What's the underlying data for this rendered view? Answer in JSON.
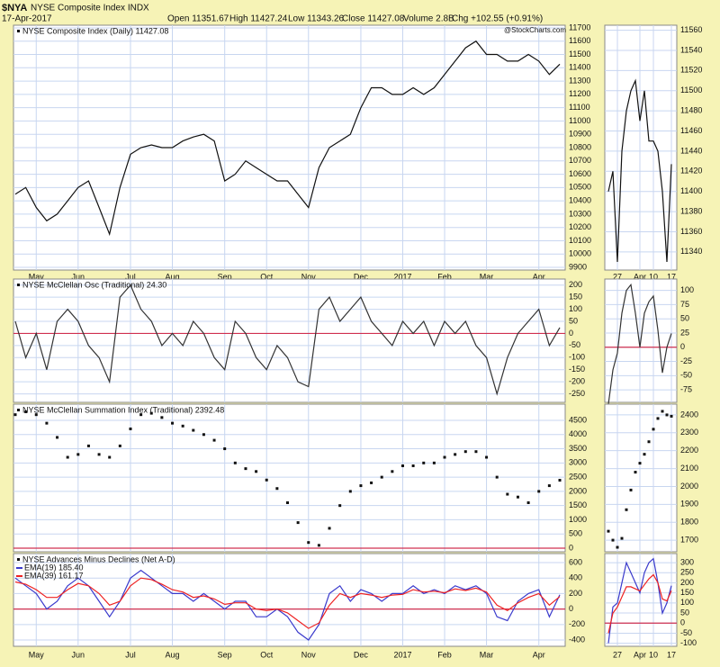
{
  "header": {
    "symbol": "$NYA",
    "name": "NYSE Composite Index INDX",
    "date": "17-Apr-2017",
    "quote": [
      "Open 11351.67",
      "High 11427.24",
      "Low 11343.26",
      "Close 11427.08",
      "Volume 2.8B",
      "Chg +102.55 (+0.91%)"
    ],
    "credit": "@StockCharts.com"
  },
  "chart_data": [
    {
      "type": "line",
      "title": "NYSE Composite Index (Daily) 11427.08",
      "color": "#111111",
      "categories": [
        null,
        null,
        "May",
        null,
        null,
        null,
        "Jun",
        null,
        null,
        null,
        null,
        "Jul",
        null,
        null,
        null,
        "Aug",
        null,
        null,
        null,
        null,
        "Sep",
        null,
        null,
        null,
        "Oct",
        null,
        null,
        null,
        "Nov",
        null,
        null,
        null,
        null,
        "Dec",
        null,
        null,
        null,
        "2017",
        null,
        null,
        null,
        "Feb",
        null,
        null,
        null,
        "Mar",
        null,
        null,
        null,
        null,
        "Apr",
        null,
        null
      ],
      "values": [
        10450,
        10500,
        10350,
        10250,
        10300,
        10400,
        10500,
        10550,
        10350,
        10150,
        10500,
        10750,
        10800,
        10820,
        10800,
        10800,
        10850,
        10880,
        10900,
        10850,
        10550,
        10600,
        10700,
        10650,
        10600,
        10550,
        10550,
        10450,
        10350,
        10650,
        10800,
        10850,
        10900,
        11100,
        11250,
        11250,
        11200,
        11200,
        11250,
        11200,
        11250,
        11350,
        11450,
        11550,
        11600,
        11500,
        11500,
        11450,
        11450,
        11500,
        11450,
        11350,
        11427.08
      ],
      "ylim": [
        9880,
        11720
      ],
      "yticks": [
        9900,
        10000,
        10100,
        10200,
        10300,
        10400,
        10500,
        10600,
        10700,
        10800,
        10900,
        11000,
        11100,
        11200,
        11300,
        11400,
        11500,
        11600,
        11700
      ]
    },
    {
      "type": "line",
      "color": "#111111",
      "categories": [
        null,
        null,
        "27",
        null,
        null,
        null,
        null,
        "Apr",
        null,
        null,
        "10",
        null,
        null,
        null,
        "17"
      ],
      "values": [
        11400,
        11420,
        11330,
        11440,
        11480,
        11500,
        11510,
        11470,
        11500,
        11450,
        11450,
        11440,
        11400,
        11330,
        11427.08
      ],
      "ylim": [
        11322,
        11565
      ],
      "yticks": [
        11340,
        11360,
        11380,
        11400,
        11420,
        11440,
        11460,
        11480,
        11500,
        11520,
        11540,
        11560
      ]
    },
    {
      "type": "line",
      "title": "NYSE McClellan Osc (Traditional) 24.30",
      "color": "#333333",
      "values": [
        50,
        -100,
        0,
        -150,
        50,
        100,
        50,
        -50,
        -100,
        -200,
        150,
        200,
        100,
        50,
        -50,
        0,
        -50,
        50,
        0,
        -100,
        -150,
        50,
        0,
        -100,
        -150,
        -50,
        -100,
        -200,
        -220,
        100,
        150,
        50,
        100,
        150,
        50,
        0,
        -50,
        50,
        0,
        50,
        -50,
        50,
        0,
        50,
        -50,
        -100,
        -250,
        -100,
        0,
        50,
        100,
        -50,
        24.3
      ],
      "ylim": [
        -285,
        225
      ],
      "yticks": [
        -250,
        -200,
        -150,
        -100,
        -50,
        0,
        50,
        100,
        150,
        200
      ],
      "reference_line": {
        "value": 0,
        "color": "#d03050"
      }
    },
    {
      "type": "line",
      "color": "#333333",
      "values": [
        -100,
        -40,
        -10,
        60,
        100,
        110,
        60,
        0,
        60,
        80,
        90,
        30,
        -45,
        0,
        24.3
      ],
      "ylim": [
        -97,
        120
      ],
      "yticks": [
        -75,
        -50,
        -25,
        0,
        25,
        50,
        75,
        100
      ],
      "reference_line": {
        "value": 0,
        "color": "#d03050"
      }
    },
    {
      "type": "dot",
      "title": "NYSE McClellan Summation Index (Traditional) 2392.48",
      "color": "#111111",
      "values": [
        4700,
        4800,
        4700,
        4400,
        3900,
        3200,
        3300,
        3600,
        3300,
        3200,
        3600,
        4200,
        4700,
        4750,
        4600,
        4400,
        4300,
        4150,
        4000,
        3800,
        3500,
        3000,
        2800,
        2700,
        2400,
        2100,
        1600,
        900,
        200,
        100,
        700,
        1500,
        2000,
        2200,
        2300,
        2500,
        2700,
        2900,
        2900,
        3000,
        3000,
        3200,
        3300,
        3400,
        3400,
        3200,
        2500,
        1900,
        1800,
        1600,
        2000,
        2200,
        2392.48
      ],
      "ylim": [
        -127,
        5070
      ],
      "yticks": [
        0,
        500,
        1000,
        1500,
        2000,
        2500,
        3000,
        3500,
        4000,
        4500
      ],
      "reference_line": {
        "value": 0,
        "color": "#d03050"
      }
    },
    {
      "type": "dot",
      "color": "#111111",
      "values": [
        1750,
        1700,
        1660,
        1710,
        1870,
        1980,
        2080,
        2130,
        2180,
        2250,
        2320,
        2380,
        2420,
        2400,
        2392.48
      ],
      "ylim": [
        1635,
        2460
      ],
      "yticks": [
        1700,
        1800,
        1900,
        2000,
        2100,
        2200,
        2300,
        2400
      ]
    },
    {
      "type": "line",
      "title": "NYSE Advances Minus Declines (Net A-D)",
      "series": [
        {
          "name": "EMA(19) 185.40",
          "color": "#3a3acc",
          "values": [
            400,
            300,
            200,
            0,
            100,
            300,
            400,
            300,
            100,
            -100,
            100,
            400,
            500,
            400,
            300,
            200,
            200,
            100,
            200,
            100,
            0,
            100,
            100,
            -100,
            -100,
            0,
            -100,
            -300,
            -400,
            -200,
            200,
            300,
            100,
            250,
            200,
            100,
            200,
            200,
            300,
            200,
            250,
            200,
            300,
            250,
            300,
            200,
            -100,
            -150,
            100,
            200,
            250,
            -100,
            185.4
          ]
        },
        {
          "name": "EMA(39) 161.17",
          "color": "#ee2222",
          "values": [
            350,
            320,
            250,
            150,
            150,
            250,
            330,
            300,
            200,
            50,
            100,
            300,
            400,
            380,
            320,
            250,
            220,
            150,
            170,
            130,
            60,
            80,
            80,
            0,
            -20,
            0,
            -50,
            -150,
            -250,
            -180,
            50,
            200,
            150,
            200,
            180,
            150,
            180,
            190,
            250,
            220,
            230,
            210,
            260,
            240,
            270,
            220,
            50,
            -20,
            80,
            150,
            200,
            50,
            161.17
          ]
        }
      ],
      "ylim": [
        -481,
        716
      ],
      "yticks": [
        -400,
        -200,
        0,
        200,
        400,
        600
      ],
      "reference_line": {
        "value": 0,
        "color": "#d03050"
      }
    },
    {
      "type": "line",
      "series": [
        {
          "color": "#3a3acc",
          "values": [
            -100,
            80,
            100,
            200,
            300,
            250,
            200,
            150,
            250,
            300,
            320,
            200,
            50,
            100,
            185.4
          ]
        },
        {
          "color": "#ee2222",
          "values": [
            -50,
            50,
            80,
            130,
            180,
            180,
            170,
            160,
            190,
            220,
            240,
            200,
            120,
            110,
            161.17
          ]
        }
      ],
      "ylim": [
        -115,
        345
      ],
      "yticks": [
        -100,
        -50,
        0,
        50,
        100,
        150,
        200,
        250,
        300
      ],
      "reference_line": {
        "value": 0,
        "color": "#d03050"
      }
    }
  ]
}
